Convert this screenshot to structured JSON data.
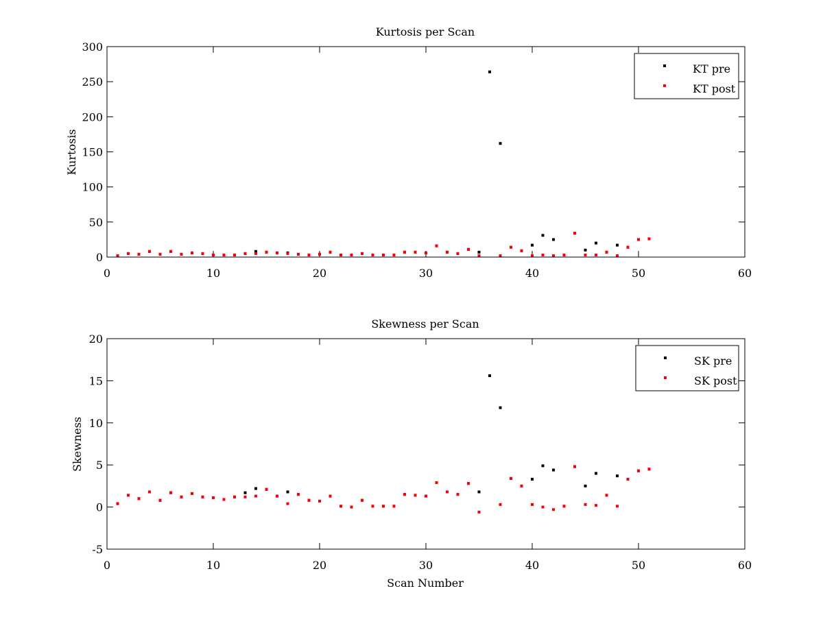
{
  "colors": {
    "pre": "#000000",
    "post": "#ff0000",
    "axes": "#000000",
    "background": "#ffffff"
  },
  "chart_data": [
    {
      "type": "scatter",
      "title": "Kurtosis per Scan",
      "xlabel": "",
      "ylabel": "Kurtosis",
      "xlim": [
        0,
        60
      ],
      "ylim": [
        0,
        300
      ],
      "xticks": [
        0,
        10,
        20,
        30,
        40,
        50,
        60
      ],
      "yticks": [
        0,
        50,
        100,
        150,
        200,
        250,
        300
      ],
      "grid": false,
      "legend_position": "top-right",
      "series": [
        {
          "name": "KT pre",
          "color": "#000000",
          "points": [
            [
              1,
              2
            ],
            [
              2,
              5
            ],
            [
              3,
              4
            ],
            [
              4,
              8
            ],
            [
              5,
              4
            ],
            [
              6,
              8
            ],
            [
              7,
              4
            ],
            [
              8,
              6
            ],
            [
              9,
              5
            ],
            [
              10,
              3
            ],
            [
              11,
              3
            ],
            [
              12,
              3
            ],
            [
              13,
              5
            ],
            [
              14,
              8
            ],
            [
              15,
              7
            ],
            [
              16,
              6
            ],
            [
              17,
              6
            ],
            [
              18,
              4
            ],
            [
              19,
              3
            ],
            [
              20,
              4
            ],
            [
              21,
              7
            ],
            [
              22,
              3
            ],
            [
              23,
              3
            ],
            [
              24,
              5
            ],
            [
              25,
              3
            ],
            [
              26,
              3
            ],
            [
              27,
              3
            ],
            [
              28,
              7
            ],
            [
              29,
              7
            ],
            [
              30,
              6
            ],
            [
              31,
              16
            ],
            [
              32,
              7
            ],
            [
              33,
              5
            ],
            [
              34,
              11
            ],
            [
              35,
              7
            ],
            [
              36,
              264
            ],
            [
              37,
              162
            ],
            [
              38,
              14
            ],
            [
              39,
              9
            ],
            [
              40,
              17
            ],
            [
              41,
              31
            ],
            [
              42,
              25
            ],
            [
              43,
              3
            ],
            [
              44,
              34
            ],
            [
              45,
              10
            ],
            [
              46,
              20
            ],
            [
              47,
              7
            ],
            [
              48,
              17
            ],
            [
              49,
              14
            ],
            [
              50,
              25
            ],
            [
              51,
              26
            ]
          ]
        },
        {
          "name": "KT post",
          "color": "#ff0000",
          "points": [
            [
              1,
              2
            ],
            [
              2,
              5
            ],
            [
              3,
              4
            ],
            [
              4,
              8
            ],
            [
              5,
              4
            ],
            [
              6,
              8
            ],
            [
              7,
              4
            ],
            [
              8,
              6
            ],
            [
              9,
              5
            ],
            [
              10,
              3
            ],
            [
              11,
              3
            ],
            [
              12,
              3
            ],
            [
              13,
              5
            ],
            [
              14,
              5
            ],
            [
              15,
              7
            ],
            [
              16,
              6
            ],
            [
              17,
              5
            ],
            [
              18,
              4
            ],
            [
              19,
              3
            ],
            [
              20,
              4
            ],
            [
              21,
              7
            ],
            [
              22,
              3
            ],
            [
              23,
              3
            ],
            [
              24,
              5
            ],
            [
              25,
              3
            ],
            [
              26,
              3
            ],
            [
              27,
              3
            ],
            [
              28,
              7
            ],
            [
              29,
              7
            ],
            [
              30,
              6
            ],
            [
              31,
              16
            ],
            [
              32,
              7
            ],
            [
              33,
              5
            ],
            [
              34,
              11
            ],
            [
              35,
              2
            ],
            [
              37,
              2
            ],
            [
              38,
              14
            ],
            [
              39,
              9
            ],
            [
              40,
              2
            ],
            [
              41,
              3
            ],
            [
              42,
              2
            ],
            [
              43,
              3
            ],
            [
              44,
              34
            ],
            [
              45,
              3
            ],
            [
              46,
              3
            ],
            [
              47,
              7
            ],
            [
              48,
              2
            ],
            [
              49,
              14
            ],
            [
              50,
              25
            ],
            [
              51,
              26
            ]
          ]
        }
      ]
    },
    {
      "type": "scatter",
      "title": "Skewness per Scan",
      "xlabel": "Scan Number",
      "ylabel": "Skewness",
      "xlim": [
        0,
        60
      ],
      "ylim": [
        -5,
        20
      ],
      "xticks": [
        0,
        10,
        20,
        30,
        40,
        50,
        60
      ],
      "yticks": [
        -5,
        0,
        5,
        10,
        15,
        20
      ],
      "grid": false,
      "legend_position": "top-right",
      "series": [
        {
          "name": "SK pre",
          "color": "#000000",
          "points": [
            [
              1,
              0.4
            ],
            [
              2,
              1.4
            ],
            [
              3,
              1.0
            ],
            [
              4,
              1.8
            ],
            [
              5,
              0.8
            ],
            [
              6,
              1.7
            ],
            [
              7,
              1.2
            ],
            [
              8,
              1.6
            ],
            [
              9,
              1.2
            ],
            [
              10,
              1.1
            ],
            [
              11,
              0.9
            ],
            [
              12,
              1.2
            ],
            [
              13,
              1.7
            ],
            [
              14,
              2.2
            ],
            [
              15,
              2.1
            ],
            [
              16,
              1.3
            ],
            [
              17,
              1.8
            ],
            [
              18,
              1.5
            ],
            [
              19,
              0.8
            ],
            [
              20,
              0.7
            ],
            [
              21,
              1.3
            ],
            [
              22,
              0.1
            ],
            [
              23,
              0.0
            ],
            [
              24,
              0.8
            ],
            [
              25,
              0.1
            ],
            [
              26,
              0.1
            ],
            [
              27,
              0.1
            ],
            [
              28,
              1.5
            ],
            [
              29,
              1.4
            ],
            [
              30,
              1.3
            ],
            [
              31,
              2.9
            ],
            [
              32,
              1.8
            ],
            [
              33,
              1.5
            ],
            [
              34,
              2.8
            ],
            [
              35,
              1.8
            ],
            [
              36,
              15.6
            ],
            [
              37,
              11.8
            ],
            [
              38,
              3.4
            ],
            [
              39,
              2.5
            ],
            [
              40,
              3.3
            ],
            [
              41,
              4.9
            ],
            [
              42,
              4.4
            ],
            [
              43,
              0.1
            ],
            [
              44,
              4.8
            ],
            [
              45,
              2.5
            ],
            [
              46,
              4.0
            ],
            [
              47,
              1.4
            ],
            [
              48,
              3.7
            ],
            [
              49,
              3.3
            ],
            [
              50,
              4.3
            ],
            [
              51,
              4.5
            ]
          ]
        },
        {
          "name": "SK post",
          "color": "#ff0000",
          "points": [
            [
              1,
              0.4
            ],
            [
              2,
              1.4
            ],
            [
              3,
              1.0
            ],
            [
              4,
              1.8
            ],
            [
              5,
              0.8
            ],
            [
              6,
              1.7
            ],
            [
              7,
              1.2
            ],
            [
              8,
              1.6
            ],
            [
              9,
              1.2
            ],
            [
              10,
              1.1
            ],
            [
              11,
              0.9
            ],
            [
              12,
              1.2
            ],
            [
              13,
              1.2
            ],
            [
              14,
              1.3
            ],
            [
              15,
              2.1
            ],
            [
              16,
              1.3
            ],
            [
              17,
              0.4
            ],
            [
              18,
              1.5
            ],
            [
              19,
              0.8
            ],
            [
              20,
              0.7
            ],
            [
              21,
              1.3
            ],
            [
              22,
              0.1
            ],
            [
              23,
              0.0
            ],
            [
              24,
              0.8
            ],
            [
              25,
              0.1
            ],
            [
              26,
              0.1
            ],
            [
              27,
              0.1
            ],
            [
              28,
              1.5
            ],
            [
              29,
              1.4
            ],
            [
              30,
              1.3
            ],
            [
              31,
              2.9
            ],
            [
              32,
              1.8
            ],
            [
              33,
              1.5
            ],
            [
              34,
              2.8
            ],
            [
              35,
              -0.6
            ],
            [
              37,
              0.3
            ],
            [
              38,
              3.4
            ],
            [
              39,
              2.5
            ],
            [
              40,
              0.3
            ],
            [
              41,
              0.0
            ],
            [
              42,
              -0.3
            ],
            [
              43,
              0.1
            ],
            [
              44,
              4.8
            ],
            [
              45,
              0.3
            ],
            [
              46,
              0.2
            ],
            [
              47,
              1.4
            ],
            [
              48,
              0.1
            ],
            [
              49,
              3.3
            ],
            [
              50,
              4.3
            ],
            [
              51,
              4.5
            ]
          ]
        }
      ]
    }
  ]
}
